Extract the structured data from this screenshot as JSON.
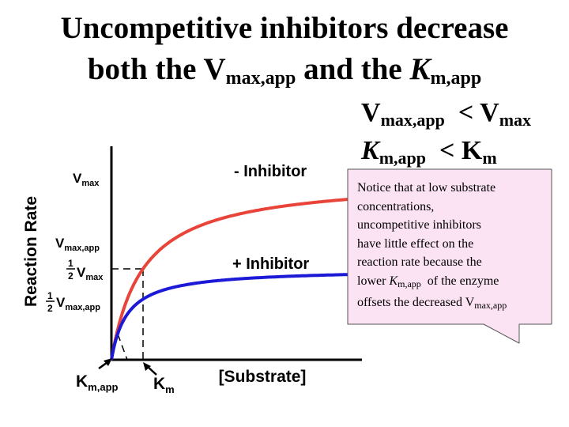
{
  "title": {
    "line1": "Uncompetitive  inhibitors decrease",
    "line2_pre": "both the V",
    "line2_vsub": "max,app",
    "line2_mid": " and the ",
    "line2_k": "K",
    "line2_ksub": "m,app"
  },
  "relations": {
    "v_main": "V",
    "v_sub": "max,app",
    "v_op": "  < V",
    "v_sub2": "max",
    "k_main": "K",
    "k_sub": "m,app",
    "k_op": "  < K",
    "k_sub2": "m"
  },
  "note": {
    "l1": "Notice that at low substrate",
    "l2": "concentrations,",
    "l3": "uncompetitive inhibitors",
    "l4": "have little effect on the",
    "l5": "reaction rate because the",
    "l6_pre": "lower ",
    "l6_k": "K",
    "l6_sub": "m,app",
    "l6_post": "  of the enzyme",
    "l7_pre": "offsets the decreased V",
    "l7_sub": "max,app"
  },
  "colors": {
    "no_inhibitor": "#e8443a",
    "inhibitor": "#1c1ad6",
    "note_fill": "#fbe3f4",
    "axis": "#000000"
  },
  "chart_data": {
    "type": "line",
    "ylabel": "Reaction Rate",
    "xlabel": "[Substrate]",
    "params": {
      "Vmax": 1.0,
      "Km": 1.0,
      "Vmax_app": 0.5,
      "Km_app": 0.5
    },
    "xlim": [
      0,
      10
    ],
    "ylim": [
      0,
      1.1
    ],
    "series": [
      {
        "name": "- Inhibitor",
        "color": "#e8443a",
        "Vmax": 1.0,
        "Km": 1.0
      },
      {
        "name": "+ Inhibitor",
        "color": "#1c1ad6",
        "Vmax": 0.5,
        "Km": 0.5
      }
    ],
    "y_ticks": {
      "vmax": {
        "main": "V",
        "sub": "max"
      },
      "vmax_app": {
        "main": "V",
        "sub": "max,app"
      },
      "half_vmax": {
        "num": "1",
        "den": "2",
        "main": "V",
        "sub": "max"
      },
      "half_vmax_app": {
        "num": "1",
        "den": "2",
        "main": "V",
        "sub": "max,app"
      }
    },
    "x_ticks": {
      "km_app": {
        "main": "K",
        "sub": "m,app"
      },
      "km": {
        "main": "K",
        "sub": "m"
      }
    }
  }
}
